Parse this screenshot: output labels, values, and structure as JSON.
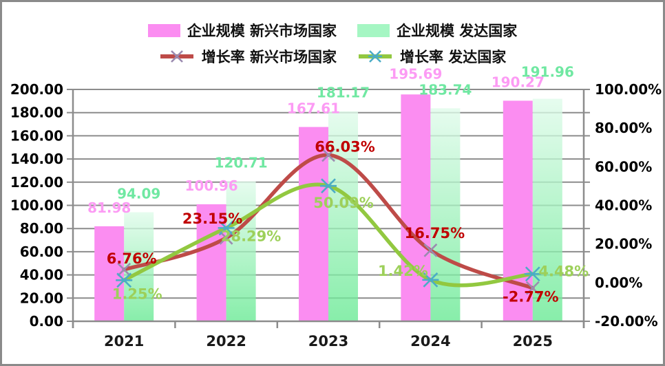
{
  "legend": {
    "bar_emerging": "企业规模 新兴市场国家",
    "bar_developed": "企业规模 发达国家",
    "line_emerging": "增长率 新兴市场国家",
    "line_developed": "增长率 发达国家"
  },
  "colors": {
    "bar_emerging": "#FB8DF1",
    "bar_developed_top": "#DFFBEA",
    "bar_developed_bottom": "#66E992",
    "legend_swatch_developed": "#A5F6C3",
    "line_emerging": "#BE4B48",
    "line_developed": "#92C840",
    "marker_emerging": "#9B8BB0",
    "marker_developed": "#4BACC6",
    "label_bar_emerging": "#FC9BF4",
    "label_bar_developed": "#70E8A2",
    "label_line_emerging": "#C00000",
    "label_line_developed": "#9DD05A",
    "grid": "#8C8C8C",
    "axis_text": "#1a1a1a"
  },
  "chart_data": {
    "type": "bar",
    "subtype": "combo-bar-line-dual-axis",
    "categories": [
      "2021",
      "2022",
      "2023",
      "2024",
      "2025"
    ],
    "series": [
      {
        "name": "企业规模 新兴市场国家",
        "kind": "bar",
        "axis": "left",
        "values": [
          81.98,
          100.96,
          167.61,
          195.69,
          190.27
        ],
        "labels": [
          "81.98",
          "100.96",
          "167.61",
          "195.69",
          "190.27"
        ]
      },
      {
        "name": "企业规模 发达国家",
        "kind": "bar",
        "axis": "left",
        "values": [
          94.09,
          120.71,
          181.17,
          183.74,
          191.96
        ],
        "labels": [
          "94.09",
          "120.71",
          "181.17",
          "183.74",
          "191.96"
        ]
      },
      {
        "name": "增长率 新兴市场国家",
        "kind": "line",
        "axis": "right",
        "values": [
          6.76,
          23.15,
          66.03,
          16.75,
          -2.77
        ],
        "labels": [
          "6.76%",
          "23.15%",
          "66.03%",
          "16.75%",
          "-2.77%"
        ]
      },
      {
        "name": "增长率 发达国家",
        "kind": "line",
        "axis": "right",
        "values": [
          1.25,
          28.29,
          50.09,
          1.42,
          4.48
        ],
        "labels": [
          "1.25%",
          "28.29%",
          "50.09%",
          "1.42%",
          "4.48%"
        ]
      }
    ],
    "left_axis": {
      "min": 0,
      "max": 200,
      "step": 20,
      "tick_labels": [
        "0.00",
        "20.00",
        "40.00",
        "60.00",
        "80.00",
        "100.00",
        "120.00",
        "140.00",
        "160.00",
        "180.00",
        "200.00"
      ]
    },
    "right_axis": {
      "min": -20,
      "max": 100,
      "step": 20,
      "tick_labels": [
        "-20.00%",
        "0.00%",
        "20.00%",
        "40.00%",
        "60.00%",
        "80.00%",
        "100.00%"
      ]
    },
    "grid": "horizontal",
    "legend_position": "top",
    "smooth_lines": true
  }
}
